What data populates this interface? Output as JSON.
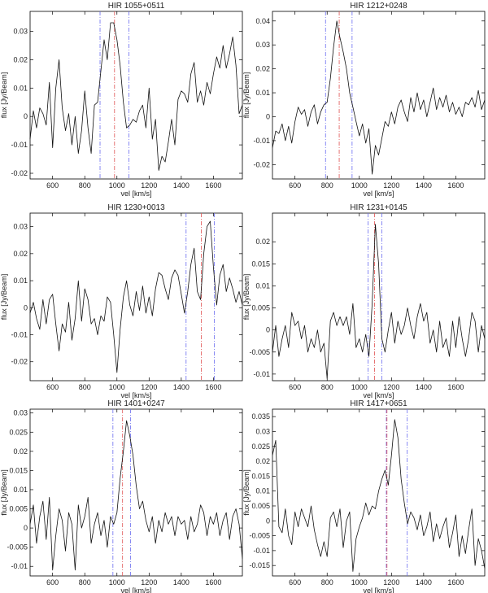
{
  "chart_data": [
    {
      "type": "line",
      "title": "HIR 1055+0511",
      "xlabel": "vel [km/s]",
      "ylabel": "flux [Jy/Beam]",
      "xlim": [
        460,
        1780
      ],
      "ylim": [
        -0.022,
        0.037
      ],
      "xticks": [
        600,
        800,
        1000,
        1200,
        1400,
        1600
      ],
      "yticks": [
        -0.02,
        -0.01,
        0,
        0.01,
        0.02,
        0.03
      ],
      "ytick_labels": [
        "-0.02",
        "-0.01",
        "0",
        "0.01",
        "0.02",
        "0.03"
      ],
      "markers": [
        {
          "x": 895,
          "color": "#6a6cf0"
        },
        {
          "x": 985,
          "color": "#e05050"
        },
        {
          "x": 1075,
          "color": "#6a6cf0"
        }
      ],
      "x": [
        460,
        480,
        500,
        520,
        540,
        560,
        580,
        600,
        620,
        640,
        660,
        680,
        700,
        720,
        740,
        760,
        780,
        800,
        820,
        840,
        860,
        880,
        900,
        920,
        940,
        960,
        980,
        1000,
        1020,
        1040,
        1060,
        1080,
        1100,
        1120,
        1140,
        1160,
        1180,
        1200,
        1220,
        1240,
        1260,
        1280,
        1300,
        1320,
        1340,
        1360,
        1380,
        1400,
        1420,
        1440,
        1460,
        1480,
        1500,
        1520,
        1540,
        1560,
        1580,
        1600,
        1620,
        1640,
        1660,
        1680,
        1700,
        1720,
        1740,
        1760,
        1780
      ],
      "y": [
        -0.008,
        0.002,
        -0.004,
        0.003,
        0.001,
        -0.003,
        0.012,
        -0.011,
        0.01,
        0.02,
        0.003,
        -0.005,
        0.001,
        -0.01,
        0.0,
        -0.013,
        -0.005,
        0.009,
        -0.004,
        -0.013,
        0.004,
        0.005,
        0.016,
        0.027,
        0.02,
        0.033,
        0.033,
        0.027,
        0.018,
        0.005,
        -0.004,
        -0.003,
        -0.001,
        -0.002,
        0.002,
        0.004,
        -0.004,
        0.01,
        -0.008,
        -0.001,
        -0.019,
        -0.014,
        -0.016,
        -0.009,
        -0.001,
        -0.01,
        0.006,
        0.009,
        0.008,
        0.005,
        0.015,
        0.019,
        0.005,
        0.009,
        0.004,
        0.012,
        0.008,
        0.015,
        0.021,
        0.017,
        0.025,
        0.017,
        0.022,
        0.028,
        0.018,
        0.001,
        0.004
      ]
    },
    {
      "type": "line",
      "title": "HIR 1212+0248",
      "xlabel": "vel [km/s]",
      "ylabel": "flux [Jy/Beam]",
      "xlim": [
        460,
        1780
      ],
      "ylim": [
        -0.026,
        0.044
      ],
      "xticks": [
        600,
        800,
        1000,
        1200,
        1400,
        1600
      ],
      "yticks": [
        -0.02,
        -0.01,
        0,
        0.01,
        0.02,
        0.03,
        0.04
      ],
      "ytick_labels": [
        "-0.02",
        "-0.01",
        "0",
        "0.01",
        "0.02",
        "0.03",
        "0.04"
      ],
      "markers": [
        {
          "x": 790,
          "color": "#6a6cf0"
        },
        {
          "x": 875,
          "color": "#e05050"
        },
        {
          "x": 955,
          "color": "#6a6cf0"
        }
      ],
      "x": [
        460,
        480,
        500,
        520,
        540,
        560,
        580,
        600,
        620,
        640,
        660,
        680,
        700,
        720,
        740,
        760,
        780,
        800,
        820,
        840,
        860,
        880,
        900,
        920,
        940,
        960,
        980,
        1000,
        1020,
        1040,
        1060,
        1080,
        1100,
        1120,
        1140,
        1160,
        1180,
        1200,
        1220,
        1240,
        1260,
        1280,
        1300,
        1320,
        1340,
        1360,
        1380,
        1400,
        1420,
        1440,
        1460,
        1480,
        1500,
        1520,
        1540,
        1560,
        1580,
        1600,
        1620,
        1640,
        1660,
        1680,
        1700,
        1720,
        1740,
        1760,
        1780
      ],
      "y": [
        -0.013,
        -0.006,
        -0.007,
        -0.003,
        -0.01,
        -0.004,
        -0.011,
        -0.002,
        0.004,
        0.001,
        0.003,
        -0.004,
        0.002,
        0.005,
        -0.003,
        0.002,
        0.005,
        0.006,
        0.016,
        0.029,
        0.04,
        0.033,
        0.027,
        0.02,
        0.01,
        0.004,
        -0.002,
        -0.008,
        -0.003,
        -0.011,
        -0.005,
        -0.024,
        -0.012,
        -0.016,
        -0.009,
        -0.002,
        -0.004,
        0.002,
        -0.003,
        0.004,
        0.007,
        0.002,
        -0.002,
        0.008,
        0.002,
        0.01,
        0.003,
        0.007,
        0.0,
        0.006,
        0.012,
        0.003,
        0.008,
        0.004,
        0.009,
        0.002,
        0.006,
        0.001,
        0.004,
        0.0,
        0.006,
        0.005,
        0.008,
        0.004,
        0.011,
        0.003,
        0.007
      ]
    },
    {
      "type": "line",
      "title": "HIR 1230+0013",
      "xlabel": "vel [km/s]",
      "ylabel": "flux [Jy/Beam]",
      "xlim": [
        460,
        1780
      ],
      "ylim": [
        -0.027,
        0.035
      ],
      "xticks": [
        600,
        800,
        1000,
        1200,
        1400,
        1600
      ],
      "yticks": [
        -0.02,
        -0.01,
        0,
        0.01,
        0.02,
        0.03
      ],
      "ytick_labels": [
        "-0.02",
        "-0.01",
        "0",
        "0.01",
        "0.02",
        "0.03"
      ],
      "markers": [
        {
          "x": 1430,
          "color": "#6a6cf0"
        },
        {
          "x": 1525,
          "color": "#e05050"
        },
        {
          "x": 1605,
          "color": "#6a6cf0"
        }
      ],
      "x": [
        460,
        480,
        500,
        520,
        540,
        560,
        580,
        600,
        620,
        640,
        660,
        680,
        700,
        720,
        740,
        760,
        780,
        800,
        820,
        840,
        860,
        880,
        900,
        920,
        940,
        960,
        980,
        1000,
        1020,
        1040,
        1060,
        1080,
        1100,
        1120,
        1140,
        1160,
        1180,
        1200,
        1220,
        1240,
        1260,
        1280,
        1300,
        1320,
        1340,
        1360,
        1380,
        1400,
        1420,
        1440,
        1460,
        1480,
        1500,
        1520,
        1540,
        1560,
        1580,
        1600,
        1620,
        1640,
        1660,
        1680,
        1700,
        1720,
        1740,
        1760,
        1780
      ],
      "y": [
        -0.002,
        0.002,
        -0.004,
        -0.008,
        0.003,
        -0.006,
        0.003,
        0.005,
        -0.006,
        -0.016,
        -0.006,
        -0.009,
        0.002,
        -0.012,
        -0.004,
        0.01,
        -0.005,
        0.007,
        0.003,
        -0.006,
        -0.004,
        -0.01,
        -0.003,
        -0.005,
        0.004,
        0.002,
        -0.01,
        -0.024,
        -0.008,
        0.004,
        0.01,
        0.001,
        -0.003,
        0.006,
        -0.001,
        0.008,
        -0.002,
        0.004,
        -0.003,
        0.007,
        0.013,
        0.012,
        0.007,
        0.003,
        0.011,
        0.014,
        0.012,
        0.005,
        -0.002,
        0.006,
        0.016,
        0.022,
        0.006,
        0.003,
        0.02,
        0.03,
        0.032,
        0.015,
        0.001,
        0.012,
        0.016,
        0.006,
        0.011,
        0.007,
        0.002,
        0.006,
        0.001
      ]
    },
    {
      "type": "line",
      "title": "HIR 1231+0145",
      "xlabel": "vel [km/s]",
      "ylabel": "flux [Jy/Beam]",
      "xlim": [
        460,
        1780
      ],
      "ylim": [
        -0.0115,
        0.0265
      ],
      "xticks": [
        600,
        800,
        1000,
        1200,
        1400,
        1600
      ],
      "yticks": [
        -0.01,
        -0.005,
        0,
        0.005,
        0.01,
        0.015,
        0.02
      ],
      "ytick_labels": [
        "-0.01",
        "-0.005",
        "0",
        "0.005",
        "0.01",
        "0.015",
        "0.02"
      ],
      "markers": [
        {
          "x": 1055,
          "color": "#6a6cf0"
        },
        {
          "x": 1095,
          "color": "#e05050"
        },
        {
          "x": 1140,
          "color": "#6a6cf0"
        }
      ],
      "x": [
        460,
        480,
        500,
        520,
        540,
        560,
        580,
        600,
        620,
        640,
        660,
        680,
        700,
        720,
        740,
        760,
        780,
        800,
        820,
        840,
        860,
        880,
        900,
        920,
        940,
        960,
        980,
        1000,
        1020,
        1040,
        1060,
        1080,
        1100,
        1120,
        1140,
        1160,
        1180,
        1200,
        1220,
        1240,
        1260,
        1280,
        1300,
        1320,
        1340,
        1360,
        1380,
        1400,
        1420,
        1440,
        1460,
        1480,
        1500,
        1520,
        1540,
        1560,
        1580,
        1600,
        1620,
        1640,
        1660,
        1680,
        1700,
        1720,
        1740,
        1760,
        1780
      ],
      "y": [
        -0.005,
        0.001,
        -0.006,
        -0.002,
        0.001,
        -0.004,
        0.004,
        0.001,
        0.002,
        -0.002,
        0.001,
        -0.005,
        -0.002,
        -0.004,
        0.0,
        -0.005,
        -0.003,
        -0.011,
        0.002,
        0.004,
        0.001,
        0.003,
        0.001,
        0.003,
        -0.001,
        0.006,
        -0.004,
        -0.002,
        -0.005,
        -0.001,
        -0.006,
        0.006,
        0.024,
        0.015,
        -0.002,
        -0.005,
        0.0,
        0.004,
        -0.003,
        0.002,
        -0.001,
        0.001,
        0.005,
        0.001,
        -0.002,
        0.003,
        0.006,
        0.002,
        0.004,
        -0.003,
        0.0,
        -0.005,
        0.002,
        -0.004,
        -0.002,
        -0.006,
        0.002,
        -0.004,
        0.003,
        -0.002,
        -0.006,
        -0.002,
        0.004,
        0.002,
        -0.005,
        0.001,
        -0.002
      ]
    },
    {
      "type": "line",
      "title": "HIR 1401+0247",
      "xlabel": "vel [km/s]",
      "ylabel": "flux [Jy/Beam]",
      "xlim": [
        460,
        1780
      ],
      "ylim": [
        -0.0125,
        0.031
      ],
      "xticks": [
        600,
        800,
        1000,
        1200,
        1400,
        1600
      ],
      "yticks": [
        -0.01,
        -0.005,
        0,
        0.005,
        0.01,
        0.015,
        0.02,
        0.025,
        0.03
      ],
      "ytick_labels": [
        "-0.01",
        "-0.005",
        "0",
        "0.005",
        "0.01",
        "0.015",
        "0.02",
        "0.025",
        "0.03"
      ],
      "markers": [
        {
          "x": 975,
          "color": "#6a6cf0"
        },
        {
          "x": 1035,
          "color": "#e05050"
        },
        {
          "x": 1085,
          "color": "#6a6cf0"
        }
      ],
      "x": [
        460,
        480,
        500,
        520,
        540,
        560,
        580,
        600,
        620,
        640,
        660,
        680,
        700,
        720,
        740,
        760,
        780,
        800,
        820,
        840,
        860,
        880,
        900,
        920,
        940,
        960,
        980,
        1000,
        1020,
        1040,
        1060,
        1080,
        1100,
        1120,
        1140,
        1160,
        1180,
        1200,
        1220,
        1240,
        1260,
        1280,
        1300,
        1320,
        1340,
        1360,
        1380,
        1400,
        1420,
        1440,
        1460,
        1480,
        1500,
        1520,
        1540,
        1560,
        1580,
        1600,
        1620,
        1640,
        1660,
        1680,
        1700,
        1720,
        1740,
        1760,
        1780
      ],
      "y": [
        0.001,
        0.006,
        -0.004,
        0.003,
        0.007,
        -0.003,
        0.008,
        -0.011,
        -0.002,
        0.005,
        0.002,
        -0.006,
        0.004,
        0.001,
        -0.011,
        0.006,
        0.0,
        0.003,
        0.008,
        -0.004,
        0.001,
        0.004,
        -0.002,
        0.002,
        -0.005,
        0.003,
        0.001,
        0.004,
        0.013,
        0.02,
        0.028,
        0.024,
        0.019,
        0.011,
        0.005,
        0.007,
        0.002,
        -0.001,
        0.003,
        -0.004,
        0.002,
        -0.001,
        0.004,
        0.001,
        0.003,
        -0.002,
        0.003,
        0.001,
        0.002,
        -0.003,
        0.003,
        -0.001,
        0.001,
        0.006,
        0.004,
        -0.002,
        0.003,
        0.001,
        0.004,
        -0.002,
        0.002,
        0.004,
        -0.003,
        0.003,
        0.005,
        0.001,
        -0.008
      ]
    },
    {
      "type": "line",
      "title": "HIR 1417+0651",
      "xlabel": "vel [km/s]",
      "ylabel": "flux [Jy/Beam]",
      "xlim": [
        460,
        1780
      ],
      "ylim": [
        -0.0185,
        0.0375
      ],
      "xticks": [
        600,
        800,
        1000,
        1200,
        1400,
        1600
      ],
      "yticks": [
        -0.015,
        -0.01,
        -0.005,
        0,
        0.005,
        0.01,
        0.015,
        0.02,
        0.025,
        0.03,
        0.035
      ],
      "ytick_labels": [
        "-0.015",
        "-0.01",
        "-0.005",
        "0",
        "0.005",
        "0.01",
        "0.015",
        "0.02",
        "0.025",
        "0.03",
        "0.035"
      ],
      "markers": [
        {
          "x": 1168,
          "color": "#6a6cf0"
        },
        {
          "x": 1172,
          "color": "#e05050"
        },
        {
          "x": 1298,
          "color": "#6a6cf0"
        }
      ],
      "x": [
        460,
        480,
        500,
        520,
        540,
        560,
        580,
        600,
        620,
        640,
        660,
        680,
        700,
        720,
        740,
        760,
        780,
        800,
        820,
        840,
        860,
        880,
        900,
        920,
        940,
        960,
        980,
        1000,
        1020,
        1040,
        1060,
        1080,
        1100,
        1120,
        1140,
        1160,
        1180,
        1200,
        1220,
        1240,
        1260,
        1280,
        1300,
        1320,
        1340,
        1360,
        1380,
        1400,
        1420,
        1440,
        1460,
        1480,
        1500,
        1520,
        1540,
        1560,
        1580,
        1600,
        1620,
        1640,
        1660,
        1680,
        1700,
        1720,
        1740,
        1760,
        1780
      ],
      "y": [
        0.022,
        0.027,
        -0.002,
        -0.004,
        0.004,
        -0.005,
        -0.008,
        0.003,
        -0.002,
        0.004,
        0.001,
        -0.002,
        0.005,
        -0.003,
        -0.008,
        -0.012,
        -0.007,
        -0.012,
        0.001,
        0.003,
        -0.002,
        0.004,
        -0.009,
        0.0,
        0.003,
        -0.017,
        -0.006,
        -0.002,
        0.001,
        0.006,
        0.002,
        0.005,
        0.004,
        0.01,
        0.014,
        0.017,
        0.012,
        0.022,
        0.034,
        0.028,
        0.014,
        0.006,
        -0.001,
        0.003,
        0.001,
        -0.003,
        0.002,
        -0.005,
        -0.002,
        0.003,
        -0.007,
        -0.001,
        -0.006,
        -0.002,
        0.001,
        -0.009,
        -0.004,
        0.002,
        -0.012,
        -0.005,
        -0.011,
        -0.003,
        0.004,
        -0.015,
        -0.006,
        -0.01,
        -0.016
      ]
    }
  ]
}
